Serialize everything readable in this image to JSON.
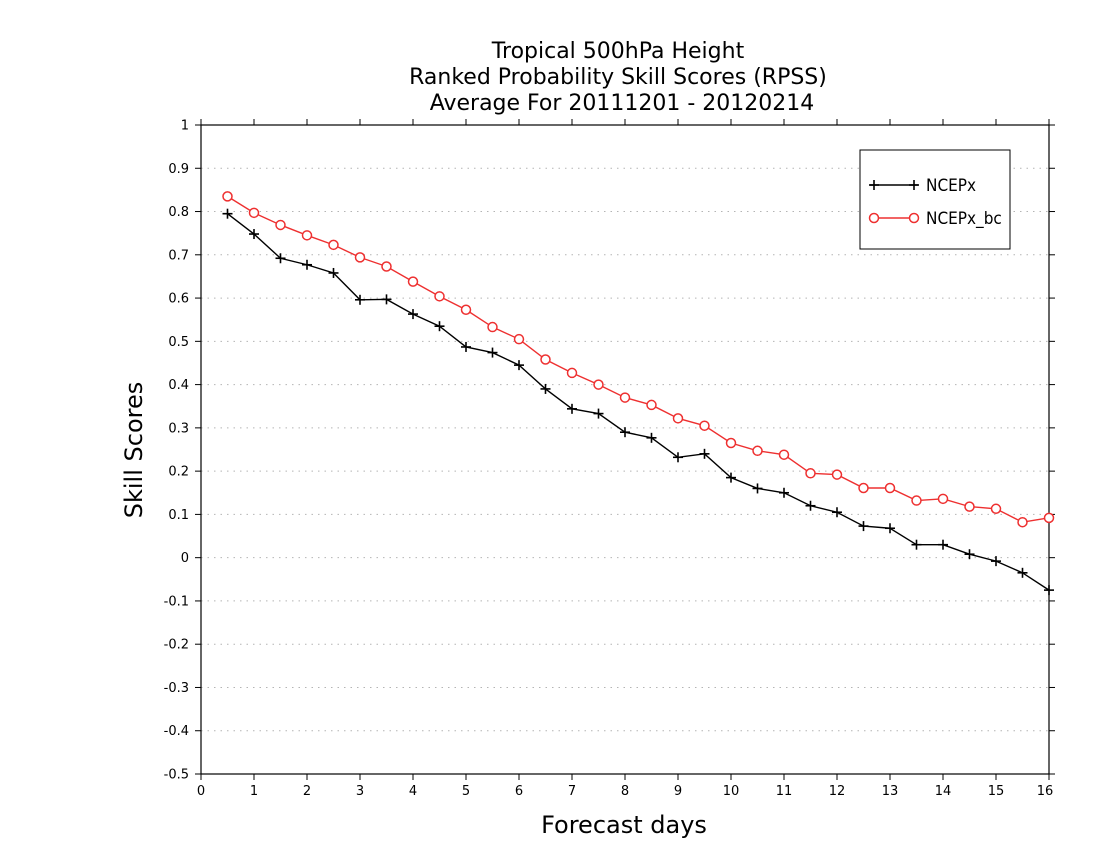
{
  "chart_data": {
    "type": "line",
    "title": [
      "Tropical 500hPa Height",
      "Ranked Probability Skill Scores (RPSS)",
      "Average For 20111201 - 20120214"
    ],
    "xlabel": "Forecast days",
    "ylabel": "Skill Scores",
    "xlim": [
      0,
      16
    ],
    "ylim": [
      -0.5,
      1
    ],
    "x_ticks": [
      "0",
      "1",
      "2",
      "3",
      "4",
      "5",
      "6",
      "7",
      "8",
      "9",
      "10",
      "11",
      "12",
      "13",
      "14",
      "15",
      "16"
    ],
    "y_ticks": [
      "1",
      "0.9",
      "0.8",
      "0.7",
      "0.6",
      "0.5",
      "0.4",
      "0.3",
      "0.2",
      "0.1",
      "0",
      "-0.1",
      "-0.2",
      "-0.3",
      "-0.4",
      "-0.5"
    ],
    "grid": true,
    "legend_position": "top-right",
    "x": [
      0.5,
      1,
      1.5,
      2,
      2.5,
      3,
      3.5,
      4,
      4.5,
      5,
      5.5,
      6,
      6.5,
      7,
      7.5,
      8,
      8.5,
      9,
      9.5,
      10,
      10.5,
      11,
      11.5,
      12,
      12.5,
      13,
      13.5,
      14,
      14.5,
      15,
      15.5,
      16
    ],
    "series": [
      {
        "name": "NCEPx",
        "color": "#000000",
        "marker": "plus",
        "values": [
          0.795,
          0.748,
          0.692,
          0.677,
          0.658,
          0.596,
          0.597,
          0.563,
          0.535,
          0.487,
          0.474,
          0.445,
          0.39,
          0.344,
          0.333,
          0.29,
          0.277,
          0.232,
          0.24,
          0.185,
          0.16,
          0.15,
          0.12,
          0.105,
          0.073,
          0.068,
          0.03,
          0.03,
          0.008,
          -0.008,
          -0.035,
          -0.075
        ]
      },
      {
        "name": "NCEPx_bc",
        "color": "#ee3030",
        "marker": "circle",
        "values": [
          0.835,
          0.797,
          0.769,
          0.745,
          0.723,
          0.694,
          0.673,
          0.638,
          0.604,
          0.573,
          0.533,
          0.505,
          0.458,
          0.427,
          0.4,
          0.37,
          0.353,
          0.322,
          0.305,
          0.265,
          0.247,
          0.238,
          0.195,
          0.192,
          0.161,
          0.161,
          0.132,
          0.136,
          0.118,
          0.113,
          0.082,
          0.092
        ]
      }
    ]
  }
}
